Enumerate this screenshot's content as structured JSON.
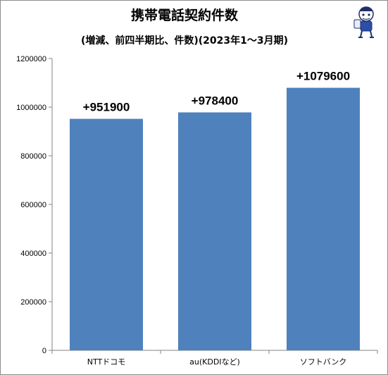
{
  "chart_data": {
    "type": "bar",
    "title": "携帯電話契約件数",
    "subtitle": "(増減、前四半期比、件数)(2023年1～3月期)",
    "categories": [
      "NTTドコモ",
      "au(KDDIなど)",
      "ソフトバンク"
    ],
    "values": [
      951900,
      978400,
      1079600
    ],
    "data_labels": [
      "+951900",
      "+978400",
      "+1079600"
    ],
    "y_ticks": [
      "0",
      "200000",
      "400000",
      "600000",
      "800000",
      "1000000",
      "1200000"
    ],
    "ylim": [
      0,
      1200000
    ],
    "xlabel": "",
    "ylabel": "",
    "bar_color": "#4f81bd",
    "grid": false,
    "legend": "none"
  },
  "mascot": {
    "icon": "mascot-icon"
  }
}
